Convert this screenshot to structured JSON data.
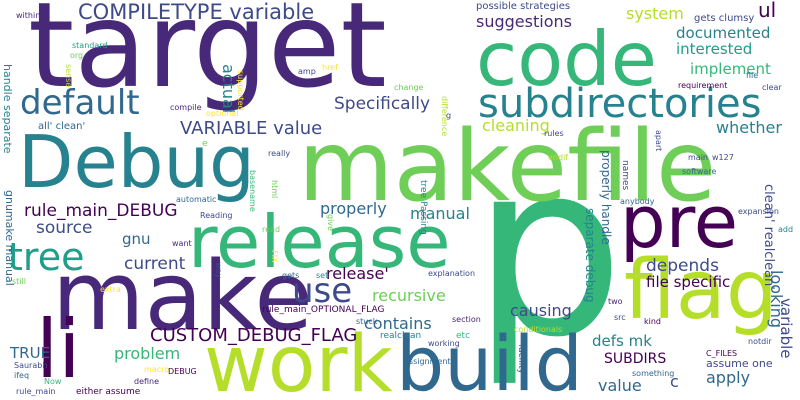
{
  "background": "#ffffff",
  "palette": [
    "#440154",
    "#482878",
    "#3e4a89",
    "#31688e",
    "#26828e",
    "#1f9e89",
    "#35b779",
    "#6ece58",
    "#b5de2b",
    "#fde725"
  ],
  "words": {
    "target": "target",
    "p": "p",
    "makefile": "makefile",
    "make": "make",
    "code": "code",
    "Debug": "Debug",
    "release": "release",
    "build": "build",
    "work": "work",
    "li": "li",
    "flag": "flag",
    "pre": "pre",
    "subdirectories": "subdirectories",
    "default": "default",
    "tree": "tree",
    "use": "use",
    "compiletype": "COMPILETYPE variable",
    "variable_value": "VARIABLE value",
    "custom_debug_flag": "CUSTOM_DEBUG_FLAG",
    "rule_main_debug": "rule_main_DEBUG",
    "specifically": "Specifically",
    "suggestions": "suggestions",
    "documented": "documented",
    "interested": "interested",
    "implement": "implement",
    "whether": "whether",
    "cleaning": "cleaning",
    "system": "system",
    "ul": "ul",
    "actual": "actual",
    "source": "source",
    "current": "current",
    "gnu": "gnu",
    "manual": "manual",
    "properly": "properly",
    "release_q": "release'",
    "recursive": "recursive",
    "contains": "contains",
    "causing": "causing",
    "depends": "depends",
    "looking": "looking",
    "file_specific": "file specific",
    "problem": "problem",
    "true": "TRUE",
    "value": "value",
    "apply": "apply",
    "defs_mk": "defs mk",
    "subdirs": "SUBDIRS",
    "c": "c",
    "assume_one": "assume one",
    "variable_v": "variable",
    "clean_realclean": "clean' realclean'",
    "separate_debug": "separate debug",
    "properly_handle": "properly handle",
    "possible_strategies": "possible strategies",
    "gets_clumsy": "gets clumsy",
    "all_clean": "all' clean'",
    "gnumake_manual": "gnumake manual",
    "handle_separate": "handle separate",
    "rule_main_optional": "rule_main_OPTIONAL_FLAG",
    "realclean": "realclean",
    "etc": "etc",
    "section": "section",
    "stuck": "stuck",
    "working": "working",
    "assignment": "assignment",
    "conditionals": "conditionals",
    "src": "src",
    "kind": "kind",
    "two": "two",
    "something": "something",
    "facility": "facility",
    "notdir": "notdir",
    "c_files": "C_FILES",
    "either_assume": "either assume",
    "define": "define",
    "macro": "macro",
    "debug_small": "DEBUG",
    "saurabh": "Saurabh",
    "ifeq": "ifeq",
    "now": "Now",
    "rule_main": "rule_main",
    "still": "still",
    "extra": "extra",
    "way": "way",
    "want": "want",
    "reading": "Reading",
    "automatic": "automatic",
    "basename": "basename",
    "html": "html",
    "read": "read",
    "fix": "FIX",
    "give": "give",
    "gets": "gets",
    "set": "set",
    "explanation": "explanation",
    "tree_passing": "tree Passing",
    "anybody": "anybody",
    "expansion": "expansion",
    "add": "add",
    "software": "software",
    "main": "main",
    "w127": "w127",
    "names": "names",
    "endif": "endif",
    "apart": "apart",
    "rules": "rules",
    "clear": "clear",
    "requirement": "requirement",
    "file": "file",
    "difference": "difference",
    "change": "change",
    "g": "g",
    "href": "href",
    "amp": "amp",
    "compile": "compile",
    "optional": "optional",
    "really": "really",
    "e": "e",
    "supported": "supported",
    "sense": "sense",
    "org": "org",
    "standard": "standard",
    "within": "within"
  }
}
